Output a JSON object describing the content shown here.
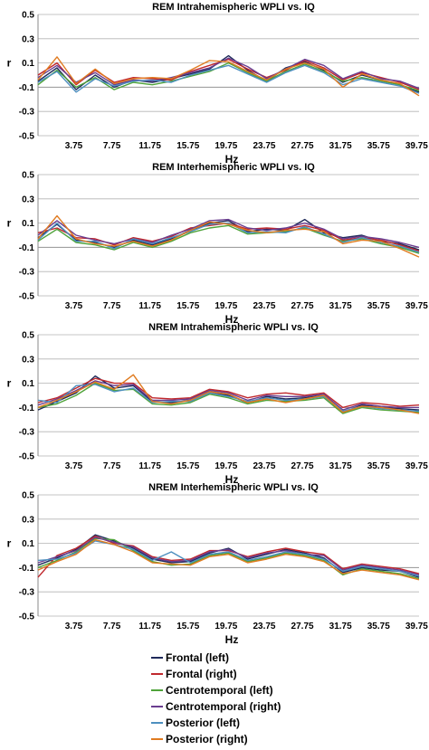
{
  "series_styles": [
    {
      "name": "Frontal (left)",
      "color": "#1f2a5a"
    },
    {
      "name": "Frontal (right)",
      "color": "#c0282d"
    },
    {
      "name": "Centrotemporal (left)",
      "color": "#4fa33a"
    },
    {
      "name": "Centrotemporal (right)",
      "color": "#6a3d8f"
    },
    {
      "name": "Posterior (left)",
      "color": "#4d8fbf"
    },
    {
      "name": "Posterior (right)",
      "color": "#e07b20"
    }
  ],
  "chart_data": [
    {
      "type": "line",
      "title": "REM Intrahemispheric WPLI vs. IQ",
      "xlabel": "Hz",
      "ylabel": "r",
      "x_tick_labels": [
        "3.75",
        "7.75",
        "11.75",
        "15.75",
        "19.75",
        "23.75",
        "27.75",
        "31.75",
        "35.75",
        "39.75"
      ],
      "y_tick_labels": [
        "0.5",
        "0.3",
        "0.1",
        "-0.1",
        "-0.3",
        "-0.5"
      ],
      "ylim": [
        -0.5,
        0.5
      ],
      "xlim": [
        0,
        40
      ],
      "grid": "horizontal",
      "x": [
        0,
        2,
        4,
        6,
        8,
        10,
        12,
        14,
        16,
        18,
        20,
        22,
        24,
        26,
        28,
        30,
        32,
        34,
        36,
        38,
        40
      ],
      "series": [
        {
          "name": "Frontal (left)",
          "values": [
            -0.05,
            0.06,
            -0.12,
            0.0,
            -0.1,
            -0.04,
            -0.06,
            -0.03,
            0.01,
            0.05,
            0.16,
            0.04,
            -0.05,
            0.06,
            0.11,
            0.04,
            -0.06,
            0.0,
            -0.04,
            -0.08,
            -0.14
          ]
        },
        {
          "name": "Frontal (right)",
          "values": [
            0.0,
            0.1,
            -0.08,
            0.04,
            -0.06,
            -0.02,
            -0.03,
            -0.04,
            0.03,
            0.08,
            0.13,
            0.05,
            -0.02,
            0.04,
            0.12,
            0.06,
            -0.04,
            0.02,
            -0.02,
            -0.06,
            -0.12
          ]
        },
        {
          "name": "Centrotemporal (left)",
          "values": [
            -0.08,
            0.04,
            -0.1,
            -0.02,
            -0.12,
            -0.06,
            -0.08,
            -0.05,
            -0.01,
            0.03,
            0.1,
            0.02,
            -0.05,
            0.03,
            0.09,
            0.03,
            -0.05,
            -0.02,
            -0.05,
            -0.08,
            -0.13
          ]
        },
        {
          "name": "Centrotemporal (right)",
          "values": [
            -0.02,
            0.08,
            -0.06,
            0.02,
            -0.08,
            -0.04,
            -0.05,
            -0.02,
            0.02,
            0.06,
            0.14,
            0.07,
            -0.03,
            0.05,
            0.13,
            0.08,
            -0.03,
            0.03,
            -0.03,
            -0.05,
            -0.11
          ]
        },
        {
          "name": "Posterior (left)",
          "values": [
            -0.06,
            0.03,
            -0.14,
            -0.03,
            -0.09,
            -0.05,
            -0.04,
            -0.06,
            0.0,
            0.04,
            0.08,
            0.01,
            -0.06,
            0.02,
            0.08,
            0.02,
            -0.08,
            -0.03,
            -0.06,
            -0.09,
            -0.15
          ]
        },
        {
          "name": "Posterior (right)",
          "values": [
            -0.04,
            0.15,
            -0.07,
            0.05,
            -0.07,
            -0.03,
            -0.02,
            -0.03,
            0.04,
            0.12,
            0.11,
            0.03,
            -0.04,
            0.05,
            0.1,
            0.05,
            -0.1,
            0.01,
            -0.04,
            -0.07,
            -0.17
          ]
        }
      ]
    },
    {
      "type": "line",
      "title": "REM Interhemispheric WPLI vs. IQ",
      "xlabel": "Hz",
      "ylabel": "r",
      "x_tick_labels": [
        "3.75",
        "7.75",
        "11.75",
        "15.75",
        "19.75",
        "23.75",
        "27.75",
        "31.75",
        "35.75",
        "39.75"
      ],
      "y_tick_labels": [
        "0.5",
        "0.3",
        "0.1",
        "-0.1",
        "-0.3",
        "-0.5"
      ],
      "ylim": [
        -0.5,
        0.5
      ],
      "xlim": [
        0,
        40
      ],
      "grid": "horizontal",
      "x": [
        0,
        2,
        4,
        6,
        8,
        10,
        12,
        14,
        16,
        18,
        20,
        22,
        24,
        26,
        28,
        30,
        32,
        34,
        36,
        38,
        40
      ],
      "series": [
        {
          "name": "Frontal (left)",
          "values": [
            -0.02,
            0.09,
            -0.04,
            -0.06,
            -0.1,
            -0.04,
            -0.08,
            -0.03,
            0.04,
            0.1,
            0.12,
            0.03,
            0.05,
            0.04,
            0.13,
            0.02,
            -0.02,
            0.0,
            -0.05,
            -0.07,
            -0.12
          ]
        },
        {
          "name": "Frontal (right)",
          "values": [
            0.02,
            0.06,
            -0.02,
            -0.03,
            -0.08,
            -0.02,
            -0.05,
            -0.01,
            0.06,
            0.08,
            0.1,
            0.05,
            0.06,
            0.05,
            0.08,
            0.04,
            -0.04,
            -0.02,
            -0.04,
            -0.08,
            -0.13
          ]
        },
        {
          "name": "Centrotemporal (left)",
          "values": [
            -0.05,
            0.05,
            -0.06,
            -0.08,
            -0.12,
            -0.06,
            -0.1,
            -0.05,
            0.02,
            0.06,
            0.08,
            0.01,
            0.02,
            0.03,
            0.06,
            0.0,
            -0.05,
            -0.03,
            -0.07,
            -0.1,
            -0.15
          ]
        },
        {
          "name": "Centrotemporal (right)",
          "values": [
            0.0,
            0.12,
            0.0,
            -0.04,
            -0.07,
            -0.03,
            -0.06,
            0.0,
            0.05,
            0.12,
            0.13,
            0.06,
            0.04,
            0.06,
            0.1,
            0.05,
            -0.03,
            -0.01,
            -0.03,
            -0.06,
            -0.1
          ]
        },
        {
          "name": "Posterior (left)",
          "values": [
            -0.04,
            0.1,
            -0.05,
            -0.05,
            -0.11,
            -0.03,
            -0.07,
            -0.02,
            0.03,
            0.09,
            0.1,
            0.02,
            0.03,
            0.02,
            0.07,
            0.01,
            -0.06,
            -0.02,
            -0.06,
            -0.09,
            -0.14
          ]
        },
        {
          "name": "Posterior (right)",
          "values": [
            -0.03,
            0.16,
            -0.03,
            -0.07,
            -0.09,
            -0.05,
            -0.09,
            -0.04,
            0.04,
            0.11,
            0.09,
            0.04,
            0.02,
            0.04,
            0.05,
            0.03,
            -0.07,
            -0.04,
            -0.05,
            -0.11,
            -0.18
          ]
        }
      ]
    },
    {
      "type": "line",
      "title": "NREM Intrahemispheric WPLI vs. IQ",
      "xlabel": "Hz",
      "ylabel": "r",
      "x_tick_labels": [
        "3.75",
        "7.75",
        "11.75",
        "15.75",
        "19.75",
        "23.75",
        "27.75",
        "31.75",
        "35.75",
        "39.75"
      ],
      "y_tick_labels": [
        "0.5",
        "0.3",
        "0.1",
        "-0.1",
        "-0.3",
        "-0.5"
      ],
      "ylim": [
        -0.5,
        0.5
      ],
      "xlim": [
        0,
        40
      ],
      "grid": "horizontal",
      "x": [
        0,
        2,
        4,
        6,
        8,
        10,
        12,
        14,
        16,
        18,
        20,
        22,
        24,
        26,
        28,
        30,
        32,
        34,
        36,
        38,
        40
      ],
      "series": [
        {
          "name": "Frontal (left)",
          "values": [
            -0.12,
            -0.05,
            0.02,
            0.16,
            0.06,
            0.08,
            -0.05,
            -0.06,
            -0.04,
            0.03,
            0.0,
            -0.06,
            -0.01,
            -0.03,
            -0.02,
            0.0,
            -0.14,
            -0.08,
            -0.1,
            -0.11,
            -0.12
          ]
        },
        {
          "name": "Frontal (right)",
          "values": [
            -0.06,
            -0.02,
            0.06,
            0.14,
            0.1,
            0.1,
            -0.02,
            -0.03,
            -0.02,
            0.05,
            0.03,
            -0.02,
            0.01,
            0.02,
            0.0,
            0.02,
            -0.1,
            -0.06,
            -0.07,
            -0.09,
            -0.08
          ]
        },
        {
          "name": "Centrotemporal (left)",
          "values": [
            -0.1,
            -0.07,
            0.0,
            0.1,
            0.04,
            0.05,
            -0.07,
            -0.08,
            -0.06,
            0.01,
            -0.02,
            -0.07,
            -0.04,
            -0.05,
            -0.04,
            -0.02,
            -0.15,
            -0.1,
            -0.12,
            -0.13,
            -0.14
          ]
        },
        {
          "name": "Centrotemporal (right)",
          "values": [
            -0.08,
            -0.03,
            0.04,
            0.12,
            0.08,
            0.09,
            -0.04,
            -0.04,
            -0.03,
            0.04,
            0.02,
            -0.04,
            0.0,
            -0.01,
            -0.01,
            0.01,
            -0.12,
            -0.07,
            -0.09,
            -0.1,
            -0.1
          ]
        },
        {
          "name": "Posterior (left)",
          "values": [
            -0.04,
            -0.06,
            0.08,
            0.09,
            0.03,
            0.06,
            -0.06,
            -0.05,
            -0.05,
            0.02,
            -0.01,
            -0.05,
            -0.02,
            -0.04,
            -0.03,
            -0.01,
            -0.13,
            -0.09,
            -0.11,
            -0.12,
            -0.13
          ]
        },
        {
          "name": "Posterior (right)",
          "values": [
            -0.1,
            -0.04,
            0.03,
            0.11,
            0.05,
            0.17,
            -0.05,
            -0.07,
            -0.04,
            0.03,
            0.01,
            -0.06,
            -0.03,
            -0.06,
            -0.03,
            0.0,
            -0.14,
            -0.09,
            -0.1,
            -0.12,
            -0.15
          ]
        }
      ]
    },
    {
      "type": "line",
      "title": "NREM Interhemispheric WPLI vs. IQ",
      "xlabel": "Hz",
      "ylabel": "r",
      "x_tick_labels": [
        "3.75",
        "7.75",
        "11.75",
        "15.75",
        "19.75",
        "23.75",
        "27.75",
        "31.75",
        "35.75",
        "39.75"
      ],
      "y_tick_labels": [
        "0.5",
        "0.3",
        "0.1",
        "-0.1",
        "-0.3",
        "-0.5"
      ],
      "ylim": [
        -0.5,
        0.5
      ],
      "xlim": [
        0,
        40
      ],
      "grid": "horizontal",
      "x": [
        0,
        2,
        4,
        6,
        8,
        10,
        12,
        14,
        16,
        18,
        20,
        22,
        24,
        26,
        28,
        30,
        32,
        34,
        36,
        38,
        40
      ],
      "series": [
        {
          "name": "Frontal (left)",
          "values": [
            -0.08,
            -0.02,
            0.05,
            0.17,
            0.12,
            0.06,
            -0.03,
            -0.06,
            -0.05,
            0.02,
            0.06,
            -0.03,
            0.01,
            0.05,
            0.02,
            -0.02,
            -0.14,
            -0.1,
            -0.12,
            -0.13,
            -0.18
          ]
        },
        {
          "name": "Frontal (right)",
          "values": [
            -0.18,
            0.0,
            0.06,
            0.16,
            0.1,
            0.08,
            -0.01,
            -0.04,
            -0.03,
            0.04,
            0.04,
            -0.01,
            0.03,
            0.06,
            0.03,
            0.01,
            -0.11,
            -0.07,
            -0.09,
            -0.11,
            -0.15
          ]
        },
        {
          "name": "Centrotemporal (left)",
          "values": [
            -0.1,
            -0.04,
            0.03,
            0.14,
            0.13,
            0.04,
            -0.05,
            -0.08,
            -0.07,
            0.0,
            0.02,
            -0.05,
            -0.02,
            0.02,
            0.0,
            -0.04,
            -0.16,
            -0.11,
            -0.13,
            -0.15,
            -0.19
          ]
        },
        {
          "name": "Centrotemporal (right)",
          "values": [
            -0.06,
            -0.01,
            0.04,
            0.15,
            0.11,
            0.07,
            -0.02,
            -0.05,
            -0.04,
            0.03,
            0.05,
            -0.02,
            0.02,
            0.04,
            0.01,
            0.0,
            -0.12,
            -0.08,
            -0.1,
            -0.12,
            -0.16
          ]
        },
        {
          "name": "Posterior (left)",
          "values": [
            -0.04,
            -0.03,
            0.02,
            0.12,
            0.09,
            0.05,
            -0.04,
            0.03,
            -0.06,
            0.01,
            0.03,
            -0.04,
            -0.01,
            0.03,
            0.01,
            -0.03,
            -0.13,
            -0.09,
            -0.11,
            -0.13,
            -0.17
          ]
        },
        {
          "name": "Posterior (right)",
          "values": [
            -0.12,
            -0.05,
            0.01,
            0.13,
            0.09,
            0.03,
            -0.06,
            -0.07,
            -0.08,
            -0.01,
            0.01,
            -0.06,
            -0.03,
            0.01,
            -0.01,
            -0.05,
            -0.15,
            -0.12,
            -0.14,
            -0.16,
            -0.2
          ]
        }
      ]
    }
  ]
}
